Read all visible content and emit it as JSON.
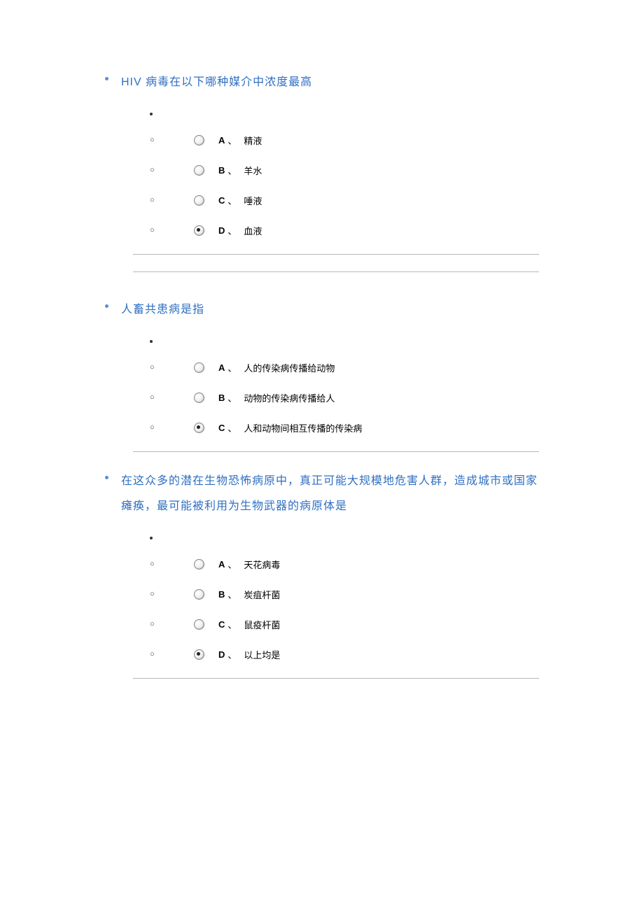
{
  "questions": [
    {
      "text": "HIV 病毒在以下哪种媒介中浓度最高",
      "options": [
        {
          "letter": "A",
          "text": "精液",
          "checked": false
        },
        {
          "letter": "B",
          "text": "羊水",
          "checked": false
        },
        {
          "letter": "C",
          "text": "唾液",
          "checked": false
        },
        {
          "letter": "D",
          "text": "血液",
          "checked": true
        }
      ],
      "double_hr": true
    },
    {
      "text": "人畜共患病是指",
      "options": [
        {
          "letter": "A",
          "text": "人的传染病传播给动物",
          "checked": false
        },
        {
          "letter": "B",
          "text": "动物的传染病传播给人",
          "checked": false
        },
        {
          "letter": "C",
          "text": "人和动物间相互传播的传染病",
          "checked": true
        }
      ],
      "double_hr": false
    },
    {
      "text": "在这众多的潜在生物恐怖病原中，真正可能大规模地危害人群，造成城市或国家瘫痪，最可能被利用为生物武器的病原体是",
      "options": [
        {
          "letter": "A",
          "text": "天花病毒",
          "checked": false
        },
        {
          "letter": "B",
          "text": "炭疽杆菌",
          "checked": false
        },
        {
          "letter": "C",
          "text": "鼠疫杆菌",
          "checked": false
        },
        {
          "letter": "D",
          "text": "以上均是",
          "checked": true
        }
      ],
      "double_hr": false
    }
  ],
  "colors": {
    "question_color": "#2f6fc1",
    "bullet_color": "#5b8fd6",
    "hr_color": "#b8b8b8",
    "text_color": "#000000",
    "background": "#ffffff"
  }
}
